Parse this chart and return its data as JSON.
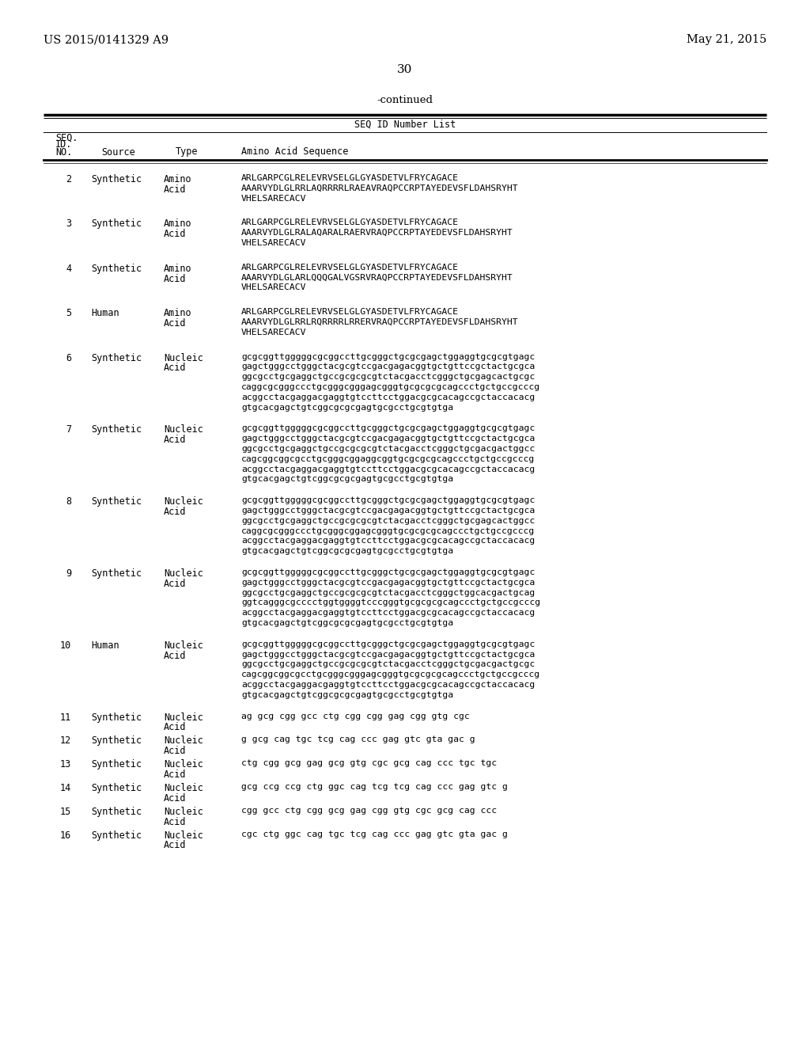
{
  "background_color": "#ffffff",
  "header_left": "US 2015/0141329 A9",
  "header_right": "May 21, 2015",
  "page_number": "30",
  "continued": "-continued",
  "table_title": "SEQ ID Number List",
  "entries": [
    {
      "no": "2",
      "source": "Synthetic",
      "type_line1": "Amino",
      "type_line2": "Acid",
      "seq_lines": [
        "ARLGARPCGLRELEVRVSELGLGYASDETVLFRYCAGACE",
        "AAARVYDLGLRRLAQRRRRLRAEAVRAQPCCRPTAYEDEVSFLDAHSRYHT",
        "VHELSARECACV"
      ]
    },
    {
      "no": "3",
      "source": "Synthetic",
      "type_line1": "Amino",
      "type_line2": "Acid",
      "seq_lines": [
        "ARLGARPCGLRELEVRVSELGLGYASDETVLFRYCAGACE",
        "AAARVYDLGLRALAQARALRAERVRAQPCCRPTAYEDEVSFLDAHSRYHT",
        "VHELSARECACV"
      ]
    },
    {
      "no": "4",
      "source": "Synthetic",
      "type_line1": "Amino",
      "type_line2": "Acid",
      "seq_lines": [
        "ARLGARPCGLRELEVRVSELGLGYASDETVLFRYCAGACE",
        "AAARVYDLGLARLQQQGALVGSRVRAQPCCRPTAYEDEVSFLDAHSRYHT",
        "VHELSARECACV"
      ]
    },
    {
      "no": "5",
      "source": "Human",
      "type_line1": "Amino",
      "type_line2": "Acid",
      "seq_lines": [
        "ARLGARPCGLRELEVRVSELGLGYASDETVLFRYCAGACE",
        "AAARVYDLGLRRLRQRRRRLRRERVRAQPCCRPTAYEDEVSFLDAHSRYHT",
        "VHELSARECACV"
      ]
    },
    {
      "no": "6",
      "source": "Synthetic",
      "type_line1": "Nucleic",
      "type_line2": "Acid",
      "seq_lines": [
        "gcgcggttgggggcgcggccttgcgggctgcgcgagctggaggtgcgcgtgagc",
        "gagctgggcctgggctacgcgtccgacgagacggtgctgttccgctactgcgca",
        "ggcgcctgcgaggctgccgcgcgcgtctacgacctcgggctgcgagcactgcgc",
        "caggcgcgggccctgcgggcgggagcgggtgcgcgcgcagccctgctgccgcccg",
        "acggcctacgaggacgaggtgtccttcctggacgcgcacagccgctaccacacg",
        "gtgcacgagctgtcggcgcgcgagtgcgcctgcgtgtga"
      ]
    },
    {
      "no": "7",
      "source": "Synthetic",
      "type_line1": "Nucleic",
      "type_line2": "Acid",
      "seq_lines": [
        "gcgcggttgggggcgcggccttgcgggctgcgcgagctggaggtgcgcgtgagc",
        "gagctgggcctgggctacgcgtccgacgagacggtgctgttccgctactgcgca",
        "ggcgcctgcgaggctgccgcgcgcgtctacgacctcgggctgcgacgactggcc",
        "cagcggcggcgcctgcgggcggaggcggtgcgcgcgcagccctgctgccgcccg",
        "acggcctacgaggacgaggtgtccttcctggacgcgcacagccgctaccacacg",
        "gtgcacgagctgtcggcgcgcgagtgcgcctgcgtgtga"
      ]
    },
    {
      "no": "8",
      "source": "Synthetic",
      "type_line1": "Nucleic",
      "type_line2": "Acid",
      "seq_lines": [
        "gcgcggttgggggcgcggccttgcgggctgcgcgagctggaggtgcgcgtgagc",
        "gagctgggcctgggctacgcgtccgacgagacggtgctgttccgctactgcgca",
        "ggcgcctgcgaggctgccgcgcgcgtctacgacctcgggctgcgagcactggcc",
        "caggcgcgggccctgcgggcggagcgggtgcgcgcgcagccctgctgccgcccg",
        "acggcctacgaggacgaggtgtccttcctggacgcgcacagccgctaccacacg",
        "gtgcacgagctgtcggcgcgcgagtgcgcctgcgtgtga"
      ]
    },
    {
      "no": "9",
      "source": "Synthetic",
      "type_line1": "Nucleic",
      "type_line2": "Acid",
      "seq_lines": [
        "gcgcggttgggggcgcggccttgcgggctgcgcgagctggaggtgcgcgtgagc",
        "gagctgggcctgggctacgcgtccgacgagacggtgctgttccgctactgcgca",
        "ggcgcctgcgaggctgccgcgcgcgtctacgacctcgggctggcacgactgcag",
        "ggtcagggcgcccctggtggggtcccgggtgcgcgcgcagccctgctgccgcccg",
        "acggcctacgaggacgaggtgtccttcctggacgcgcacagccgctaccacacg",
        "gtgcacgagctgtcggcgcgcgagtgcgcctgcgtgtga"
      ]
    },
    {
      "no": "10",
      "source": "Human",
      "type_line1": "Nucleic",
      "type_line2": "Acid",
      "seq_lines": [
        "gcgcggttgggggcgcggccttgcgggctgcgcgagctggaggtgcgcgtgagc",
        "gagctgggcctgggctacgcgtccgacgagacggtgctgttccgctactgcgca",
        "ggcgcctgcgaggctgccgcgcgcgtctacgacctcgggctgcgacgactgcgc",
        "cagcggcggcgcctgcgggcgggagcgggtgcgcgcgcagccctgctgccgcccg",
        "acggcctacgaggacgaggtgtccttcctggacgcgcacagccgctaccacacg",
        "gtgcacgagctgtcggcgcgcgagtgcgcctgcgtgtga"
      ]
    },
    {
      "no": "11",
      "source": "Synthetic",
      "type_line1": "Nucleic",
      "type_line2": "Acid",
      "seq_lines": [
        "ag gcg cgg gcc ctg cgg cgg gag cgg gtg cgc"
      ]
    },
    {
      "no": "12",
      "source": "Synthetic",
      "type_line1": "Nucleic",
      "type_line2": "Acid",
      "seq_lines": [
        "g gcg cag tgc tcg cag ccc gag gtc gta gac g"
      ]
    },
    {
      "no": "13",
      "source": "Synthetic",
      "type_line1": "Nucleic",
      "type_line2": "Acid",
      "seq_lines": [
        "ctg cgg gcg gag gcg gtg cgc gcg cag ccc tgc tgc"
      ]
    },
    {
      "no": "14",
      "source": "Synthetic",
      "type_line1": "Nucleic",
      "type_line2": "Acid",
      "seq_lines": [
        "gcg ccg ccg ctg ggc cag tcg tcg cag ccc gag gtc g"
      ]
    },
    {
      "no": "15",
      "source": "Synthetic",
      "type_line1": "Nucleic",
      "type_line2": "Acid",
      "seq_lines": [
        "cgg gcc ctg cgg gcg gag cgg gtg cgc gcg cag ccc"
      ]
    },
    {
      "no": "16",
      "source": "Synthetic",
      "type_line1": "Nucleic",
      "type_line2": "Acid",
      "seq_lines": [
        "cgc ctg ggc cag tgc tcg cag ccc gag gtc gta gac g"
      ]
    }
  ]
}
